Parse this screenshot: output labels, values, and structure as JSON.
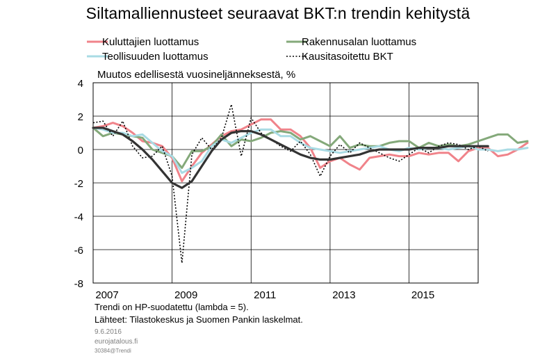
{
  "title": "Siltamalliennusteet seuraavat BKT:n trendin kehitystä",
  "notes": {
    "line1": "Trendi on HP-suodatettu (lambda = 5).",
    "line2": "Lähteet: Tilastokeskus ja Suomen Pankin laskelmat."
  },
  "footer": {
    "date": "9.6.2016",
    "site": "eurojatalous.fi",
    "code": "30384@Trendi"
  },
  "colors": {
    "kuluttajien": "#f0838a",
    "rakennus": "#84a97a",
    "teollisuus": "#a9dbe4",
    "bkt": "#000000",
    "trend": "#333333"
  },
  "chart_data": {
    "type": "line",
    "ylabel": "Muutos edellisestä vuosineljänneksestä, %",
    "ylim": [
      -8,
      4
    ],
    "yticks": [
      4,
      2,
      0,
      -2,
      -4,
      -6,
      -8
    ],
    "xlim": [
      2007,
      2016.75
    ],
    "xticks": [
      2007,
      2009,
      2011,
      2013,
      2015
    ],
    "xtick_labels": [
      "2007",
      "2009",
      "2011",
      "2013",
      "2015"
    ],
    "grid": true,
    "legend": "top",
    "x_start": 2007.0,
    "x_step": 0.25,
    "series": [
      {
        "name": "Kuluttajien luottamus",
        "color_key": "kuluttajien",
        "style": "solid",
        "values": [
          1.3,
          1.4,
          1.6,
          1.4,
          1.0,
          0.5,
          0.4,
          0.2,
          -0.5,
          -1.9,
          -1.0,
          -0.2,
          0.3,
          0.8,
          1.1,
          1.2,
          1.5,
          1.8,
          1.8,
          1.2,
          1.2,
          0.8,
          0.1,
          -1.1,
          -0.7,
          -0.5,
          -0.9,
          -1.2,
          -0.5,
          -0.4,
          -0.3,
          -0.4,
          -0.4,
          -0.2,
          -0.3,
          -0.2,
          -0.2,
          -0.7,
          -0.1,
          0.1,
          0.1,
          -0.4,
          -0.3,
          0.0,
          0.4
        ]
      },
      {
        "name": "Rakennusalan luottamus",
        "color_key": "rakennus",
        "style": "solid",
        "values": [
          1.3,
          0.8,
          1.0,
          0.9,
          0.8,
          0.7,
          0.0,
          -0.2,
          -0.4,
          -1.1,
          -0.1,
          -0.1,
          0.2,
          0.9,
          0.2,
          0.6,
          0.5,
          0.7,
          1.0,
          1.1,
          1.0,
          0.6,
          0.8,
          0.5,
          0.2,
          0.8,
          0.1,
          0.3,
          0.2,
          0.2,
          0.4,
          0.5,
          0.5,
          0.1,
          0.4,
          0.2,
          0.3,
          0.2,
          0.3,
          0.5,
          0.7,
          0.9,
          0.9,
          0.4,
          0.5
        ]
      },
      {
        "name": "Teollisuuden luottamus",
        "color_key": "teollisuus",
        "style": "solid",
        "values": [
          1.3,
          1.2,
          1.0,
          1.0,
          0.8,
          0.9,
          0.4,
          -0.1,
          -0.4,
          -1.4,
          -1.1,
          -0.7,
          0.2,
          0.6,
          0.4,
          0.7,
          1.0,
          1.2,
          1.2,
          0.8,
          0.8,
          0.4,
          0.1,
          0.0,
          -0.1,
          -0.2,
          -0.1,
          0.0,
          0.1,
          0.2,
          0.0,
          -0.1,
          0.1,
          0.0,
          0.1,
          0.1,
          0.0,
          0.1,
          0.2,
          0.0,
          0.0,
          -0.1,
          0.0,
          0.0,
          0.1
        ]
      },
      {
        "name": "Kausitasoitettu BKT",
        "color_key": "bkt",
        "style": "dotted",
        "values": [
          1.6,
          1.7,
          0.8,
          1.7,
          0.2,
          -0.5,
          -0.4,
          0.2,
          -1.6,
          -6.8,
          -0.3,
          0.7,
          0.0,
          0.7,
          2.7,
          -0.4,
          1.9,
          1.0,
          0.6,
          0.2,
          -0.1,
          0.5,
          -0.3,
          -1.6,
          -0.4,
          0.3,
          -0.2,
          0.4,
          0.1,
          -0.2,
          -0.5,
          -0.7,
          -0.3,
          0.1,
          -0.2,
          0.2,
          0.4,
          0.3,
          0.0,
          0.2,
          -0.1
        ]
      },
      {
        "name": "",
        "color_key": "trend",
        "style": "thick",
        "values": [
          1.3,
          1.3,
          1.1,
          0.9,
          0.5,
          0.0,
          -0.6,
          -1.3,
          -2.0,
          -2.3,
          -1.9,
          -1.0,
          -0.1,
          0.6,
          1.0,
          1.1,
          1.1,
          0.9,
          0.6,
          0.3,
          0.0,
          -0.3,
          -0.5,
          -0.6,
          -0.6,
          -0.5,
          -0.4,
          -0.3,
          -0.1,
          0.0,
          0.0,
          0.0,
          0.0,
          0.1,
          0.1,
          0.1,
          0.2,
          0.2,
          0.2,
          0.2,
          0.2
        ]
      }
    ]
  }
}
